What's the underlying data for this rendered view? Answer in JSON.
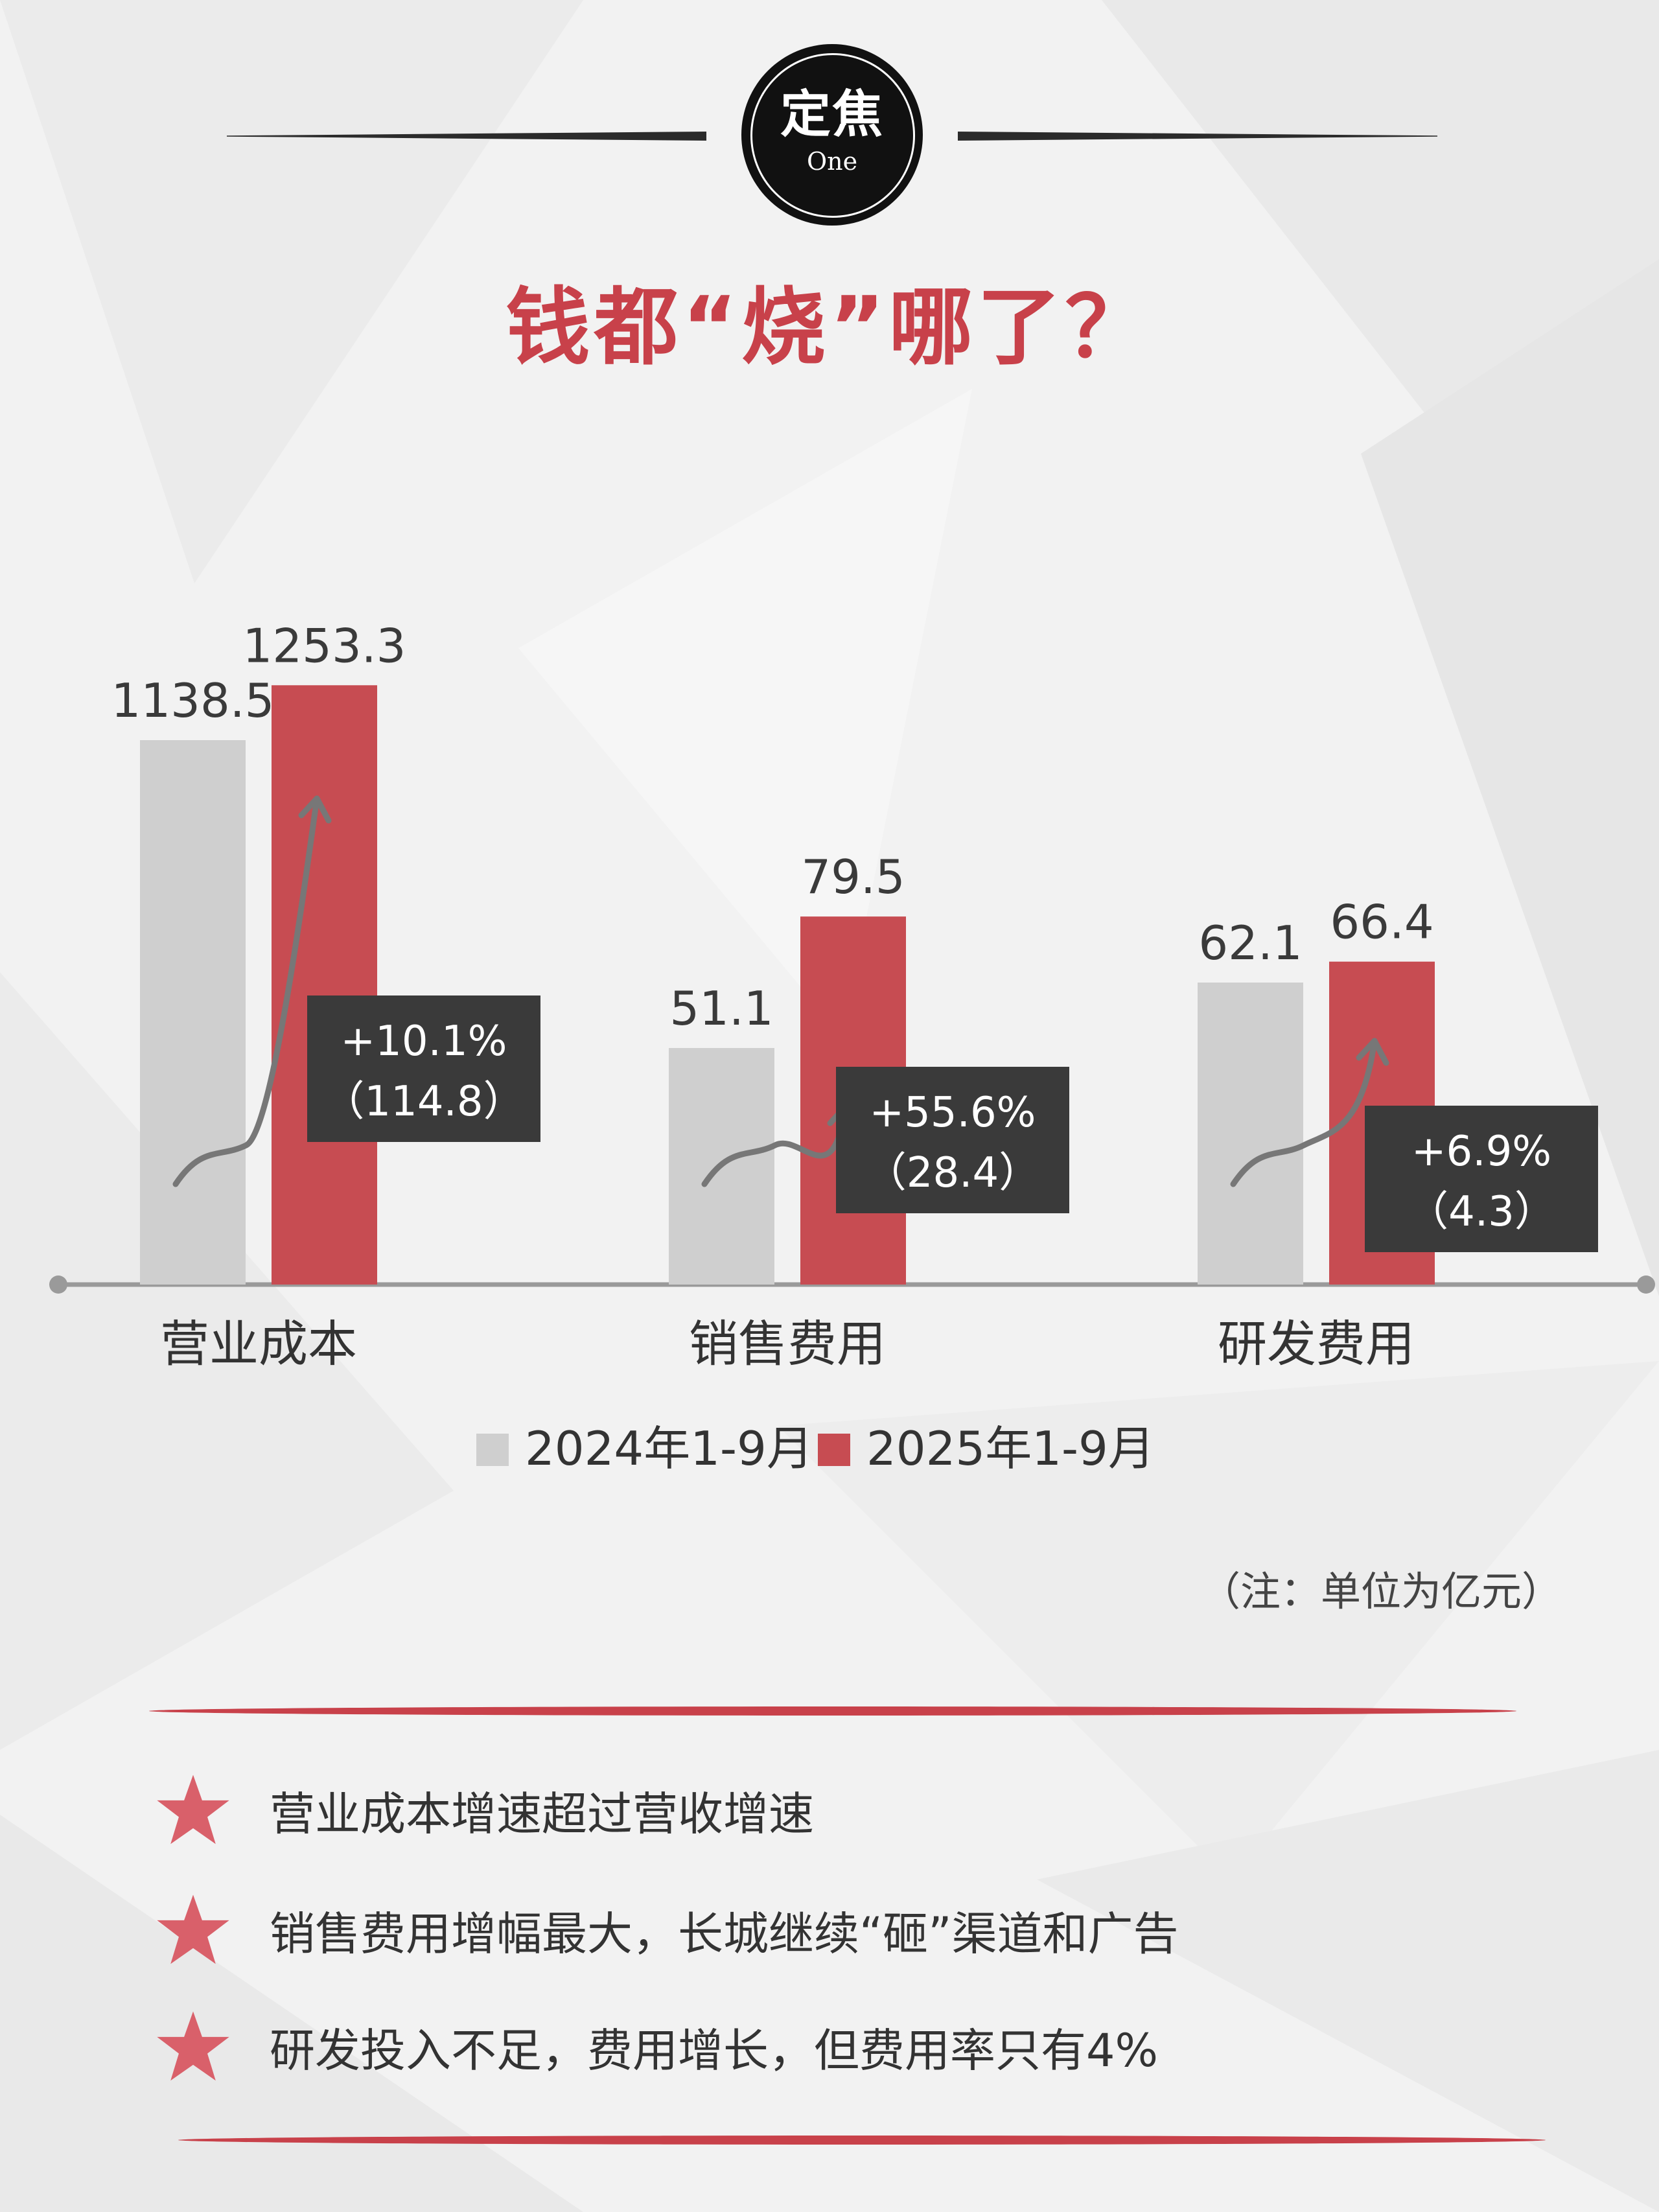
{
  "header": {
    "badge_main": "定焦",
    "badge_sub": "One",
    "title": "钱都“烧”哪了？"
  },
  "chart_data": {
    "type": "bar",
    "categories": [
      "营业成本",
      "销售费用",
      "研发费用"
    ],
    "series": [
      {
        "name": "2024年1-9月",
        "color": "#cfcfcf",
        "values": [
          1138.5,
          51.1,
          62.1
        ],
        "labels": [
          "1138.5",
          "51.1",
          "62.1"
        ]
      },
      {
        "name": "2025年1-9月",
        "color": "#c74c52",
        "values": [
          1253.3,
          79.5,
          66.4
        ],
        "labels": [
          "1253.3",
          "79.5",
          "66.4"
        ]
      }
    ],
    "annotations": [
      {
        "category": "营业成本",
        "growth": "+10.1%",
        "delta": "（114.8）"
      },
      {
        "category": "销售费用",
        "growth": "+55.6%",
        "delta": "（28.4）"
      },
      {
        "category": "研发费用",
        "growth": "+6.9%",
        "delta": "（4.3）"
      }
    ],
    "axis_scale": "separate scale per category group",
    "title": "",
    "xlabel": "",
    "ylabel": "",
    "legend_position": "bottom-center"
  },
  "note": "（注：单位为亿元）",
  "bullets": [
    {
      "icon": "star-icon",
      "text": "营业成本增速超过营收增速"
    },
    {
      "icon": "star-icon",
      "text": "销售费用增幅最大，长城继续“砸”渠道和广告"
    },
    {
      "icon": "star-icon",
      "text": "研发投入不足，费用增长，但费用率只有4%"
    }
  ],
  "colors": {
    "accent_red": "#c8414a",
    "bar_red": "#c74c52",
    "bar_gray": "#cfcfcf",
    "label_box": "#3a3a3a",
    "star": "#d9606a"
  }
}
